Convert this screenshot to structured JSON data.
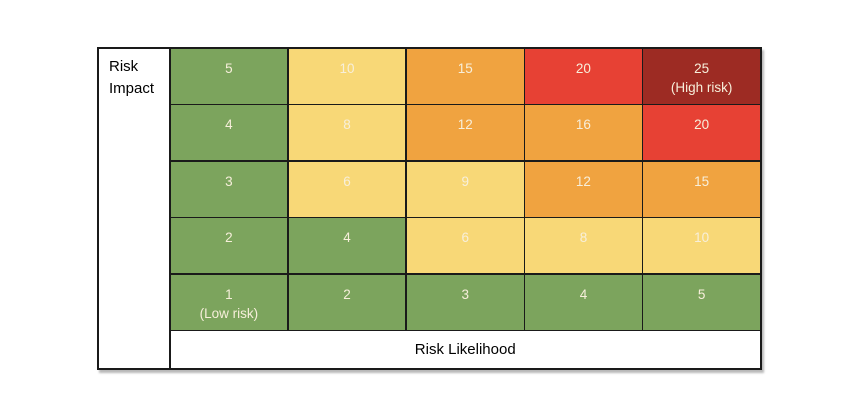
{
  "figure": {
    "impact_label": "Risk Impact",
    "likelihood_label": "Risk Likelihood"
  },
  "colors": {
    "green": "#7CA45D",
    "yellow": "#F8D877",
    "orange": "#F0A340",
    "red": "#E74134",
    "dark_red": "#9D2B23",
    "border": "#1A1A1A",
    "cell_text": "#F7EFDB",
    "label_text": "#000000",
    "background": "#FFFFFF"
  },
  "matrix": {
    "rows": [
      {
        "cells": [
          {
            "label": "5",
            "sublabel": "",
            "color": "green"
          },
          {
            "label": "10",
            "sublabel": "",
            "color": "yellow"
          },
          {
            "label": "15",
            "sublabel": "",
            "color": "orange"
          },
          {
            "label": "20",
            "sublabel": "",
            "color": "red"
          },
          {
            "label": "25",
            "sublabel": "(High risk)",
            "color": "dark_red"
          }
        ]
      },
      {
        "cells": [
          {
            "label": "4",
            "sublabel": "",
            "color": "green"
          },
          {
            "label": "8",
            "sublabel": "",
            "color": "yellow"
          },
          {
            "label": "12",
            "sublabel": "",
            "color": "orange"
          },
          {
            "label": "16",
            "sublabel": "",
            "color": "orange"
          },
          {
            "label": "20",
            "sublabel": "",
            "color": "red"
          }
        ]
      },
      {
        "cells": [
          {
            "label": "3",
            "sublabel": "",
            "color": "green"
          },
          {
            "label": "6",
            "sublabel": "",
            "color": "yellow"
          },
          {
            "label": "9",
            "sublabel": "",
            "color": "yellow"
          },
          {
            "label": "12",
            "sublabel": "",
            "color": "orange"
          },
          {
            "label": "15",
            "sublabel": "",
            "color": "orange"
          }
        ]
      },
      {
        "cells": [
          {
            "label": "2",
            "sublabel": "",
            "color": "green"
          },
          {
            "label": "4",
            "sublabel": "",
            "color": "green"
          },
          {
            "label": "6",
            "sublabel": "",
            "color": "yellow"
          },
          {
            "label": "8",
            "sublabel": "",
            "color": "yellow"
          },
          {
            "label": "10",
            "sublabel": "",
            "color": "yellow"
          }
        ]
      },
      {
        "cells": [
          {
            "label": "1",
            "sublabel": "(Low risk)",
            "color": "green"
          },
          {
            "label": "2",
            "sublabel": "",
            "color": "green"
          },
          {
            "label": "3",
            "sublabel": "",
            "color": "green"
          },
          {
            "label": "4",
            "sublabel": "",
            "color": "green"
          },
          {
            "label": "5",
            "sublabel": "",
            "color": "green"
          }
        ]
      }
    ]
  },
  "chart_data": {
    "type": "heatmap",
    "title": "",
    "xlabel": "Risk Likelihood",
    "ylabel": "Risk Impact",
    "x": [
      1,
      2,
      3,
      4,
      5
    ],
    "y_top_to_bottom": [
      5,
      4,
      3,
      2,
      1
    ],
    "values": [
      [
        5,
        10,
        15,
        20,
        25
      ],
      [
        4,
        8,
        12,
        16,
        20
      ],
      [
        3,
        6,
        9,
        12,
        15
      ],
      [
        2,
        4,
        6,
        8,
        10
      ],
      [
        1,
        2,
        3,
        4,
        5
      ]
    ],
    "cell_colors": [
      [
        "green",
        "yellow",
        "orange",
        "red",
        "dark_red"
      ],
      [
        "green",
        "yellow",
        "orange",
        "orange",
        "red"
      ],
      [
        "green",
        "yellow",
        "yellow",
        "orange",
        "orange"
      ],
      [
        "green",
        "green",
        "yellow",
        "yellow",
        "yellow"
      ],
      [
        "green",
        "green",
        "green",
        "green",
        "green"
      ]
    ],
    "annotations": [
      {
        "value": 25,
        "row_top_index": 0,
        "col_index": 4,
        "text": "(High risk)"
      },
      {
        "value": 1,
        "row_top_index": 4,
        "col_index": 0,
        "text": "(Low risk)"
      }
    ],
    "legend": "none",
    "grid": "on"
  }
}
